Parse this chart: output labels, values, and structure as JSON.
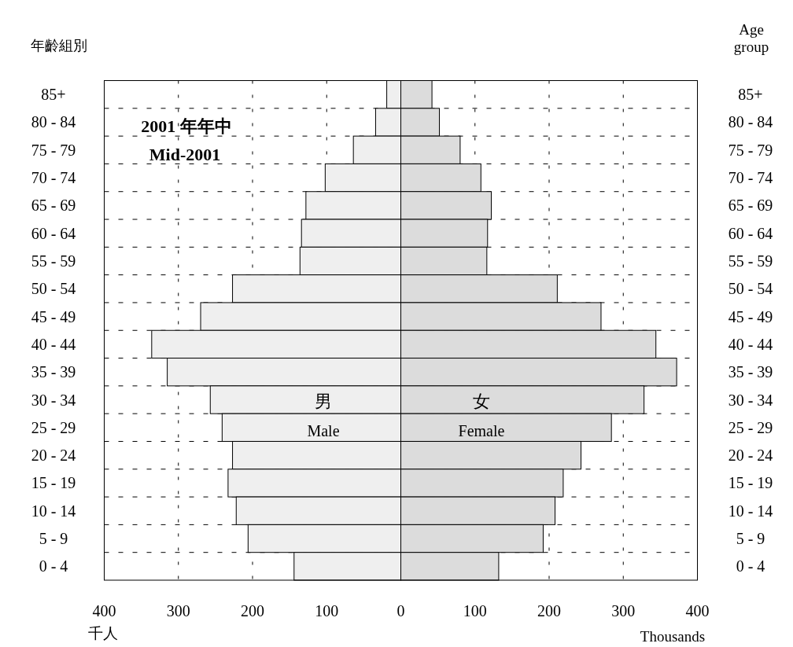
{
  "chart_data": {
    "type": "bar",
    "orientation": "horizontal",
    "stacked": true,
    "title": "2001 年年中",
    "subtitle": "Mid-2001",
    "ylabel": "年齡組別",
    "y2label": "Age group",
    "xlabel": "千人",
    "annotations": [
      "男",
      "Male",
      "女",
      "Female",
      "Thousands"
    ],
    "categories": [
      "85+",
      "80 - 84",
      "75 - 79",
      "70 - 74",
      "65 - 69",
      "60 - 64",
      "55 - 59",
      "50 - 54",
      "45 - 49",
      "40 - 44",
      "35 - 39",
      "30 - 34",
      "25 - 29",
      "20 - 24",
      "15 - 19",
      "10 - 14",
      "5 - 9",
      "0 - 4"
    ],
    "series": [
      {
        "color": "#efefef",
        "values": [
          -19,
          -34,
          -64,
          -102,
          -128,
          -134,
          -136,
          -227,
          -270,
          -336,
          -315,
          -257,
          -241,
          -227,
          -233,
          -222,
          -206,
          -144
        ]
      },
      {
        "color": "#dcdcdc",
        "values": [
          42,
          52,
          80,
          108,
          122,
          117,
          116,
          211,
          270,
          344,
          372,
          328,
          284,
          243,
          219,
          208,
          192,
          132
        ]
      }
    ],
    "xlim": [
      -400,
      400
    ],
    "xticks": [
      {
        "value": -400,
        "label": "400"
      },
      {
        "value": -300,
        "label": "300"
      },
      {
        "value": -200,
        "label": "200"
      },
      {
        "value": -100,
        "label": "100"
      },
      0,
      100,
      200,
      300,
      400
    ],
    "grid": true
  }
}
